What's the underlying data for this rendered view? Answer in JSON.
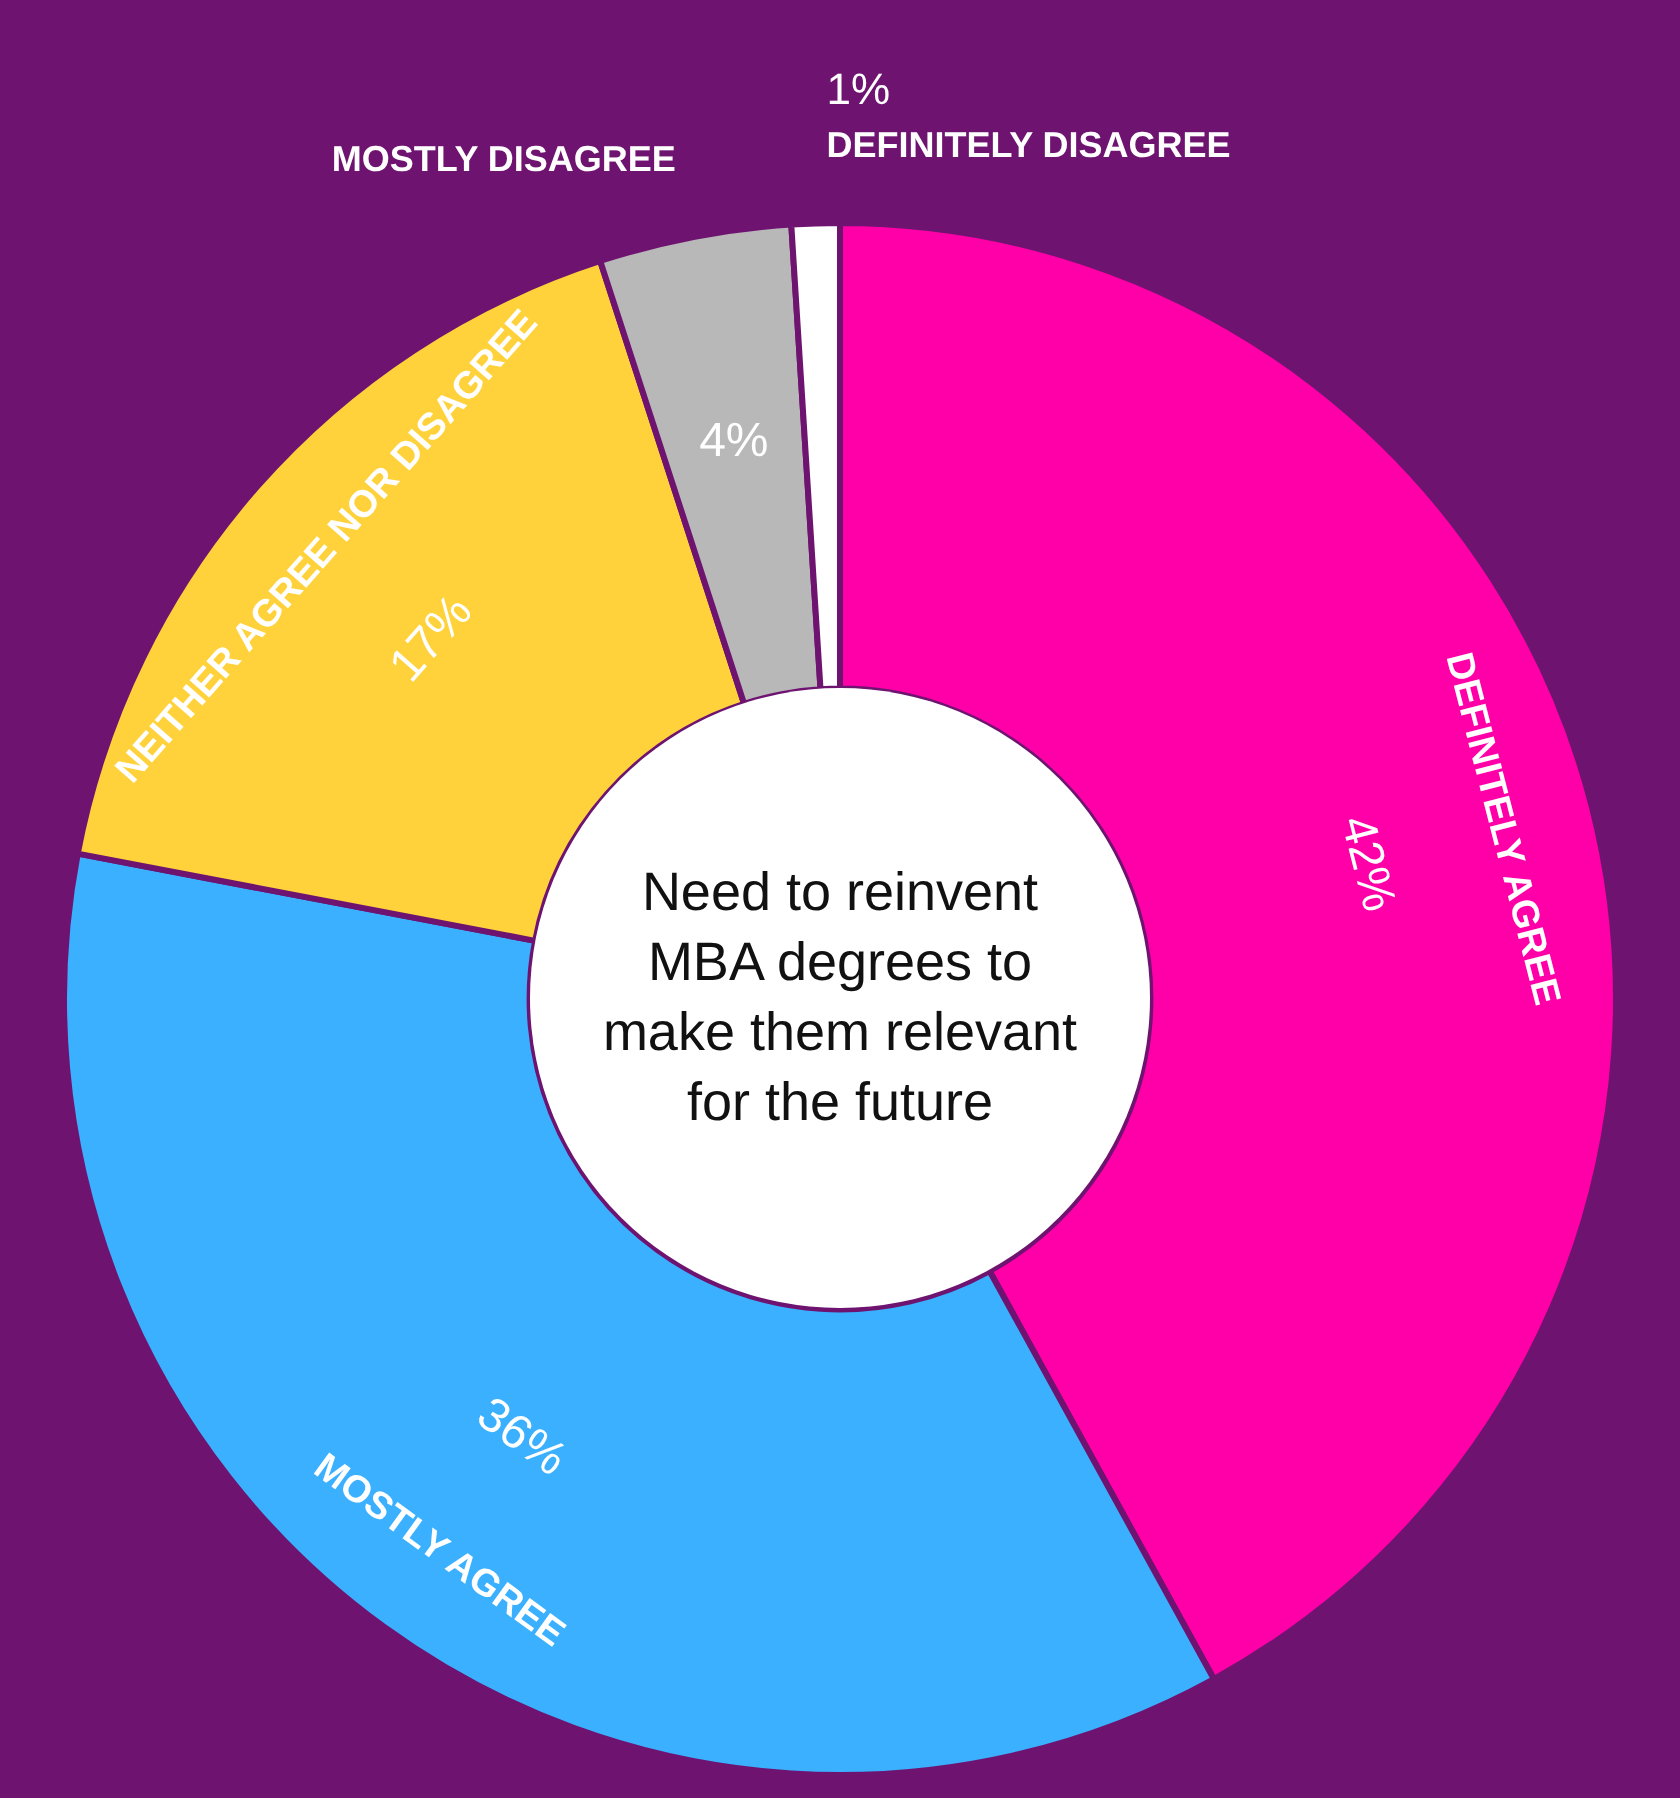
{
  "chart_data": {
    "type": "donut",
    "title": "Need to reinvent MBA degrees to make them relevant for the future",
    "categories": [
      "DEFINITELY AGREE",
      "MOSTLY AGREE",
      "NEITHER AGREE NOR DISAGREE",
      "MOSTLY DISAGREE",
      "DEFINITELY DISAGREE"
    ],
    "values": [
      42,
      36,
      17,
      4,
      1
    ],
    "value_labels": [
      "42%",
      "36%",
      "17%",
      "4%",
      "1%"
    ],
    "colors": [
      "#ff00a8",
      "#3ab0ff",
      "#ffd23c",
      "#b8b8b8",
      "#ffffff"
    ]
  }
}
